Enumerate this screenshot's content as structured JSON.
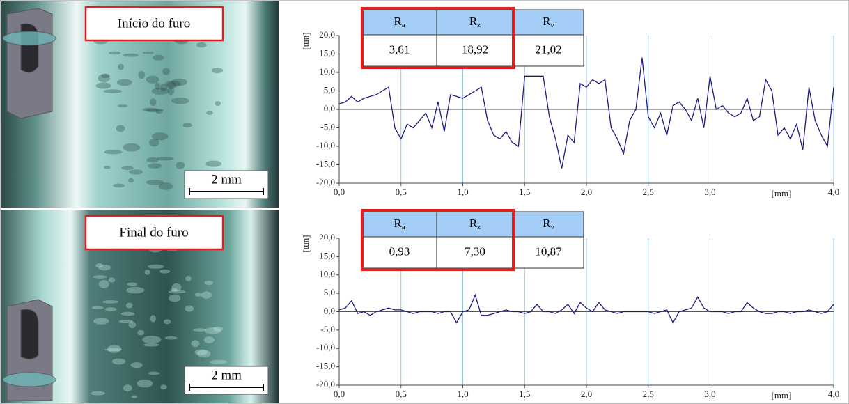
{
  "photos": [
    {
      "label": "Início do furo",
      "scale_bar": "2 mm"
    },
    {
      "label": "Final do furo",
      "scale_bar": "2 mm"
    }
  ],
  "chart_data": [
    {
      "type": "line",
      "y_label": "[um]",
      "x_label": "[mm]",
      "xlim": [
        0,
        4
      ],
      "ylim": [
        -20,
        20
      ],
      "xticks": [
        {
          "value": 0,
          "label": "0,0"
        },
        {
          "value": 0.5,
          "label": "0,5"
        },
        {
          "value": 1,
          "label": "1,0"
        },
        {
          "value": 1.5,
          "label": "1,5"
        },
        {
          "value": 2,
          "label": "2,0"
        },
        {
          "value": 2.5,
          "label": "2,5"
        },
        {
          "value": 3,
          "label": "3,0"
        },
        {
          "value": 4,
          "label": "4,0"
        }
      ],
      "yticks": [
        {
          "value": -20,
          "label": "-20,0"
        },
        {
          "value": -15,
          "label": "-15,0"
        },
        {
          "value": -10,
          "label": "-10,0"
        },
        {
          "value": -5,
          "label": "-5,0"
        },
        {
          "value": 0,
          "label": "0,0"
        },
        {
          "value": 5,
          "label": "5,0"
        },
        {
          "value": 10,
          "label": "10,0"
        },
        {
          "value": 15,
          "label": "15,0"
        },
        {
          "value": 20,
          "label": "20,0"
        }
      ],
      "grid": true,
      "x": [
        0,
        0.05,
        0.1,
        0.15,
        0.2,
        0.25,
        0.3,
        0.35,
        0.4,
        0.45,
        0.5,
        0.55,
        0.6,
        0.65,
        0.7,
        0.75,
        0.8,
        0.85,
        0.9,
        0.95,
        1,
        1.05,
        1.1,
        1.15,
        1.2,
        1.25,
        1.3,
        1.35,
        1.4,
        1.45,
        1.5,
        1.55,
        1.6,
        1.65,
        1.7,
        1.75,
        1.8,
        1.85,
        1.9,
        1.95,
        2,
        2.05,
        2.1,
        2.15,
        2.2,
        2.25,
        2.3,
        2.35,
        2.4,
        2.45,
        2.5,
        2.55,
        2.6,
        2.65,
        2.7,
        2.75,
        2.8,
        2.85,
        2.9,
        2.95,
        3,
        3.05,
        3.1,
        3.15,
        3.2,
        3.25,
        3.3,
        3.35,
        3.4,
        3.45,
        3.5,
        3.55,
        3.6,
        3.65,
        3.7,
        3.75,
        3.8,
        3.85,
        3.9,
        3.95,
        4
      ],
      "series": [
        {
          "color": "#1c1c80",
          "values": [
            1.5,
            2,
            3.5,
            2,
            3,
            3.5,
            4,
            5,
            6,
            -5,
            -8,
            -4,
            -5,
            -3,
            -1,
            -5,
            2,
            -6,
            4,
            3.5,
            3,
            4,
            5,
            6,
            -3,
            -7,
            -8,
            -6,
            -9,
            -10,
            9,
            9,
            9,
            9,
            -2,
            -8,
            -16,
            -7,
            -9,
            7,
            6,
            8,
            7,
            8,
            -5,
            -8,
            -12,
            -3,
            0,
            14,
            -2,
            -5,
            -1,
            -7,
            1,
            2,
            0,
            -3,
            3,
            -5,
            9,
            0,
            1,
            -1,
            -2,
            -1,
            3,
            -3,
            -2,
            8,
            5,
            -7,
            -5,
            -8,
            -4,
            -11,
            6,
            -3,
            -7,
            -10,
            6
          ]
        }
      ],
      "table": {
        "header": [
          {
            "symbol": "R",
            "sub": "a"
          },
          {
            "symbol": "R",
            "sub": "z"
          },
          {
            "symbol": "R",
            "sub": "v"
          }
        ],
        "values": [
          "3,61",
          "18,92",
          "21,02"
        ]
      }
    },
    {
      "type": "line",
      "y_label": "[um]",
      "x_label": "[mm]",
      "xlim": [
        0,
        4
      ],
      "ylim": [
        -20,
        20
      ],
      "xticks": [
        {
          "value": 0,
          "label": "0,0"
        },
        {
          "value": 0.5,
          "label": "0,5"
        },
        {
          "value": 1,
          "label": "1,0"
        },
        {
          "value": 1.5,
          "label": "1,5"
        },
        {
          "value": 2,
          "label": "2,0"
        },
        {
          "value": 2.5,
          "label": "2,5"
        },
        {
          "value": 3,
          "label": "3,0"
        },
        {
          "value": 4,
          "label": "4,0"
        }
      ],
      "yticks": [
        {
          "value": -20,
          "label": "-20,0"
        },
        {
          "value": -15,
          "label": "-15,0"
        },
        {
          "value": -10,
          "label": "-10,0"
        },
        {
          "value": -5,
          "label": "-5,0"
        },
        {
          "value": 0,
          "label": "0,0"
        },
        {
          "value": 5,
          "label": "5,0"
        },
        {
          "value": 10,
          "label": "10,0"
        },
        {
          "value": 15,
          "label": "15,0"
        },
        {
          "value": 20,
          "label": "20,0"
        }
      ],
      "grid": true,
      "x": [
        0,
        0.05,
        0.1,
        0.15,
        0.2,
        0.25,
        0.3,
        0.35,
        0.4,
        0.45,
        0.5,
        0.55,
        0.6,
        0.65,
        0.7,
        0.75,
        0.8,
        0.85,
        0.9,
        0.95,
        1,
        1.05,
        1.1,
        1.15,
        1.2,
        1.25,
        1.3,
        1.35,
        1.4,
        1.45,
        1.5,
        1.55,
        1.6,
        1.65,
        1.7,
        1.75,
        1.8,
        1.85,
        1.9,
        1.95,
        2,
        2.05,
        2.1,
        2.15,
        2.2,
        2.25,
        2.3,
        2.35,
        2.4,
        2.45,
        2.5,
        2.55,
        2.6,
        2.65,
        2.7,
        2.75,
        2.8,
        2.85,
        2.9,
        2.95,
        3,
        3.05,
        3.1,
        3.15,
        3.2,
        3.25,
        3.3,
        3.35,
        3.4,
        3.45,
        3.5,
        3.55,
        3.6,
        3.65,
        3.7,
        3.75,
        3.8,
        3.85,
        3.9,
        3.95,
        4
      ],
      "series": [
        {
          "color": "#1c1c80",
          "values": [
            0.5,
            1,
            3,
            -0.5,
            0,
            -1,
            0,
            0.5,
            1,
            0.5,
            0.5,
            0,
            -0.5,
            0,
            0,
            0,
            -0.5,
            0,
            0,
            -3,
            0,
            0.5,
            4.5,
            -1,
            -1,
            -0.5,
            0,
            0.5,
            0,
            0,
            -0.5,
            0,
            2,
            0,
            0,
            -0.5,
            0.5,
            2,
            -0.5,
            2.5,
            1,
            0,
            2.5,
            0.5,
            0,
            -0.5,
            0,
            0,
            0,
            0,
            0,
            -0.5,
            0,
            0.5,
            -3,
            0,
            0.5,
            1,
            4,
            1,
            0,
            0,
            0,
            -0.5,
            0,
            0,
            2.5,
            1,
            0,
            -0.5,
            -0.5,
            0,
            0,
            -0.5,
            0,
            0,
            0.5,
            0,
            -0.5,
            0,
            2
          ]
        }
      ],
      "table": {
        "header": [
          {
            "symbol": "R",
            "sub": "a"
          },
          {
            "symbol": "R",
            "sub": "z"
          },
          {
            "symbol": "R",
            "sub": "v"
          }
        ],
        "values": [
          "0,93",
          "7,30",
          "10,87"
        ]
      }
    }
  ]
}
